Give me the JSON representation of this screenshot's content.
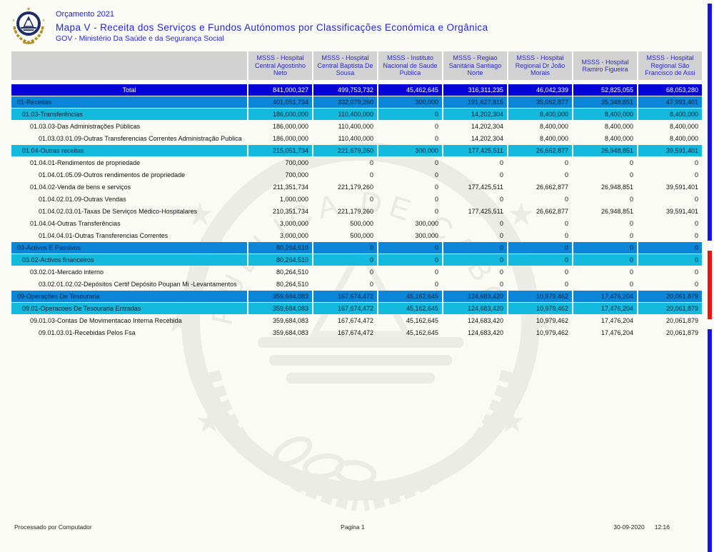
{
  "page": {
    "title_small": "Orçamento 2021",
    "title_main": "Mapa V - Receita dos Serviços e Fundos Autónomos por Classificações Económica e Orgânica",
    "title_sub": "GOV - Ministério Da Saúde e da Segurança Social"
  },
  "colors": {
    "title_text": "#2323dd",
    "header_bg": "#d2d2d2",
    "header_text": "#2a2ac9",
    "total_row_bg": "#0502d7",
    "level1_row_bg": "#0b86d9",
    "level2_row_bg": "#13badd",
    "flag_blue": "#1712e6",
    "flag_red": "#ee1111"
  },
  "table": {
    "columns": [
      "MSSS - Hospital Central Agostinho Neto",
      "MSSS - Hospital Central Baptista De Sousa",
      "MSSS - Instituto Nacional de Saude Publica",
      "MSSS - Regiao Sanitária Santiago Norte",
      "MSSS - Hospital Regional Dr João Morais",
      "MSSS - Hospital Ramiro Figueira",
      "MSSS - Hospital Regional São Francisco de Assi"
    ],
    "total_row": {
      "label": "Total",
      "values": [
        "841,000,327",
        "499,753,732",
        "45,462,645",
        "316,311,235",
        "46,042,339",
        "52,825,055",
        "68,053,280"
      ]
    },
    "rows": [
      {
        "label": "01-Receitas",
        "band": "l1",
        "indent": 1,
        "values": [
          "401,051,734",
          "332,079,260",
          "300,000",
          "191,627,815",
          "35,062,877",
          "35,348,851",
          "47,991,401"
        ]
      },
      {
        "label": "01.03-Transferências",
        "band": "l2",
        "indent": 2,
        "values": [
          "186,000,000",
          "110,400,000",
          "0",
          "14,202,304",
          "8,400,000",
          "8,400,000",
          "8,400,000"
        ]
      },
      {
        "label": "01.03.03-Das Administrações Públicas",
        "band": "none",
        "indent": 3,
        "values": [
          "186,000,000",
          "110,400,000",
          "0",
          "14,202,304",
          "8,400,000",
          "8,400,000",
          "8,400,000"
        ]
      },
      {
        "label": "01.03.03.01.09-Outras Transferencias Correntes Administração Publica",
        "band": "none",
        "indent": 4,
        "values": [
          "186,000,000",
          "110,400,000",
          "0",
          "14,202,304",
          "8,400,000",
          "8,400,000",
          "8,400,000"
        ]
      },
      {
        "label": "01.04-Outras receitas",
        "band": "l2",
        "indent": 2,
        "values": [
          "215,051,734",
          "221,679,260",
          "300,000",
          "177,425,511",
          "26,662,877",
          "26,948,851",
          "39,591,401"
        ]
      },
      {
        "label": "01.04.01-Rendimentos de propriedade",
        "band": "none",
        "indent": 3,
        "values": [
          "700,000",
          "0",
          "0",
          "0",
          "0",
          "0",
          "0"
        ]
      },
      {
        "label": "01.04.01.05.09-Outros rendimentos de propriedade",
        "band": "none",
        "indent": 4,
        "values": [
          "700,000",
          "0",
          "0",
          "0",
          "0",
          "0",
          "0"
        ]
      },
      {
        "label": "01.04.02-Venda de bens e serviços",
        "band": "none",
        "indent": 3,
        "values": [
          "211,351,734",
          "221,179,260",
          "0",
          "177,425,511",
          "26,662,877",
          "26,948,851",
          "39,591,401"
        ]
      },
      {
        "label": "01.04.02.01.09-Outras Vendas",
        "band": "none",
        "indent": 4,
        "values": [
          "1,000,000",
          "0",
          "0",
          "0",
          "0",
          "0",
          "0"
        ]
      },
      {
        "label": "01.04.02.03.01-Taxas De Serviços Médico-Hospitalares",
        "band": "none",
        "indent": 4,
        "values": [
          "210,351,734",
          "221,179,260",
          "0",
          "177,425,511",
          "26,662,877",
          "26,948,851",
          "39,591,401"
        ]
      },
      {
        "label": "01.04.04-Outras Transferências",
        "band": "none",
        "indent": 3,
        "values": [
          "3,000,000",
          "500,000",
          "300,000",
          "0",
          "0",
          "0",
          "0"
        ]
      },
      {
        "label": "01.04.04.01-Outras Transferencias Correntes",
        "band": "none",
        "indent": 4,
        "values": [
          "3,000,000",
          "500,000",
          "300,000",
          "0",
          "0",
          "0",
          "0"
        ]
      },
      {
        "label": "03-Activos E Passivos",
        "band": "l1",
        "indent": 1,
        "values": [
          "80,264,510",
          "0",
          "0",
          "0",
          "0",
          "0",
          "0"
        ]
      },
      {
        "label": "03.02-Activos financeiros",
        "band": "l2",
        "indent": 2,
        "values": [
          "80,264,510",
          "0",
          "0",
          "0",
          "0",
          "0",
          "0"
        ]
      },
      {
        "label": "03.02.01-Mercado interno",
        "band": "none",
        "indent": 3,
        "values": [
          "80,264,510",
          "0",
          "0",
          "0",
          "0",
          "0",
          "0"
        ]
      },
      {
        "label": "03.02.01.02.02-Depósitos Certif Depósito Poupan Mi -Levantamentos",
        "band": "none",
        "indent": 4,
        "values": [
          "80,264,510",
          "0",
          "0",
          "0",
          "0",
          "0",
          "0"
        ]
      },
      {
        "label": "09-Operações De Tesouraria",
        "band": "l1",
        "indent": 1,
        "values": [
          "359,684,083",
          "167,674,472",
          "45,162,645",
          "124,683,420",
          "10,979,462",
          "17,476,204",
          "20,061,879"
        ]
      },
      {
        "label": "09.01-Operacoes De Tesouraria Entradas",
        "band": "l2",
        "indent": 2,
        "values": [
          "359,684,083",
          "167,674,472",
          "45,162,645",
          "124,683,420",
          "10,979,462",
          "17,476,204",
          "20,061,879"
        ]
      },
      {
        "label": "09.01.03-Contas De Movimentacao Interna Recebida",
        "band": "none",
        "indent": 3,
        "values": [
          "359,684,083",
          "167,674,472",
          "45,162,645",
          "124,683,420",
          "10,979,462",
          "17,476,204",
          "20,061,879"
        ]
      },
      {
        "label": "09.01.03.01-Recebidas Pelos Fsa",
        "band": "none",
        "indent": 4,
        "values": [
          "359,684,083",
          "167,674,472",
          "45,162,645",
          "124,683,420",
          "10,979,462",
          "17,476,204",
          "20,061,879"
        ]
      }
    ]
  },
  "footer": {
    "left": "Processado por Computador",
    "center": "Pagina 1",
    "date": "30-09-2020",
    "time": "12:16"
  }
}
